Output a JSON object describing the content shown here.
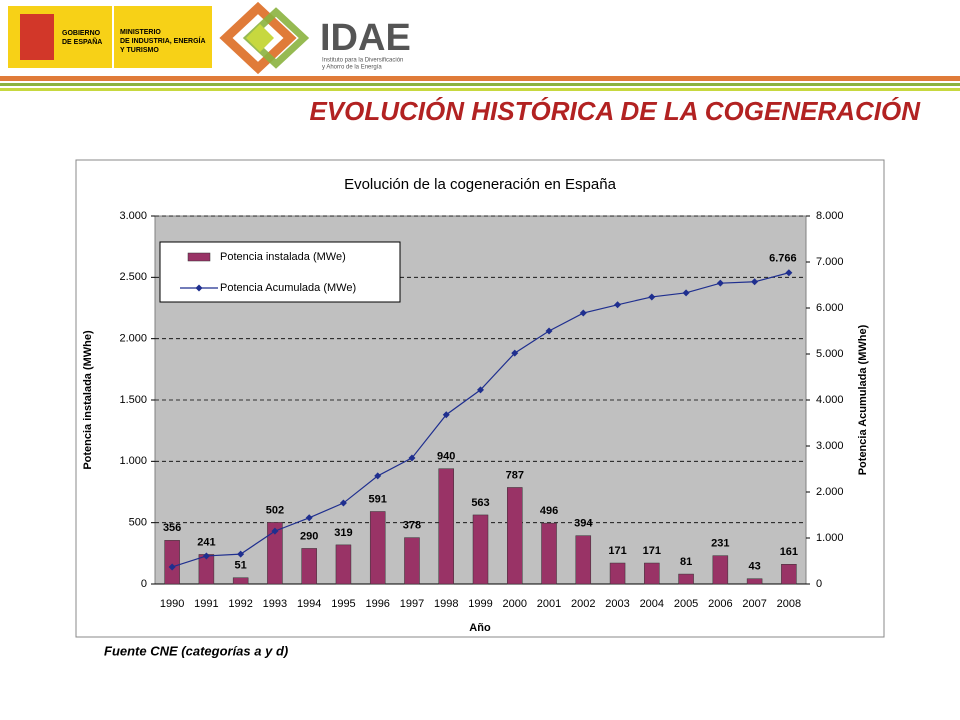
{
  "header": {
    "gobierno": [
      "GOBIERNO",
      "DE ESPAÑA"
    ],
    "ministerio": [
      "MINISTERIO",
      "DE INDUSTRIA, ENERGÍA",
      "Y TURISMO"
    ],
    "idae": "IDAE",
    "idae_sub": [
      "Instituto para la Diversificación",
      "y Ahorro de la Energía"
    ]
  },
  "title": "EVOLUCIÓN HISTÓRICA DE LA COGENERACIÓN",
  "source": "Fuente CNE (categorías a y d)",
  "chart_data": {
    "type": "bar",
    "title": "Evolución de la cogeneración en España",
    "x_label": "Año",
    "y_label": "Potencia instalada (MWhe)",
    "y2_label": "Potencia Acumulada (MWhe)",
    "categories": [
      "1990",
      "1991",
      "1992",
      "1993",
      "1994",
      "1995",
      "1996",
      "1997",
      "1998",
      "1999",
      "2000",
      "2001",
      "2002",
      "2003",
      "2004",
      "2005",
      "2006",
      "2007",
      "2008"
    ],
    "series": [
      {
        "name": "Potencia instalada (MWe)",
        "type": "bar",
        "color": "#993366",
        "values": [
          356,
          241,
          51,
          502,
          290,
          319,
          591,
          378,
          940,
          563,
          787,
          496,
          394,
          171,
          171,
          81,
          231,
          43,
          161
        ]
      },
      {
        "name": "Potencia Acumulada (MWe)",
        "type": "line",
        "axis": "y2",
        "color": "#1f2f8f",
        "values": [
          370,
          610,
          650,
          1150,
          1440,
          1760,
          2350,
          2740,
          3680,
          4220,
          5020,
          5500,
          5890,
          6070,
          6240,
          6330,
          6540,
          6570,
          6766
        ],
        "value_labels": [
          null,
          null,
          null,
          null,
          null,
          null,
          null,
          null,
          null,
          null,
          null,
          null,
          null,
          null,
          null,
          null,
          null,
          null,
          "6.766"
        ]
      }
    ],
    "ylim": [
      0,
      3000
    ],
    "yticks": [
      0,
      500,
      {
        "value": 1000,
        "label": "1.000"
      },
      {
        "value": 1500,
        "label": "1.500"
      },
      {
        "value": 2000,
        "label": "2.000"
      },
      {
        "value": 2500,
        "label": "2.500"
      },
      {
        "value": 3000,
        "label": "3.000"
      }
    ],
    "y2lim": [
      0,
      8000
    ],
    "y2ticks": [
      0,
      {
        "value": 1000,
        "label": "1.000"
      },
      {
        "value": 2000,
        "label": "2.000"
      },
      {
        "value": 3000,
        "label": "3.000"
      },
      {
        "value": 4000,
        "label": "4.000"
      },
      {
        "value": 5000,
        "label": "5.000"
      },
      {
        "value": 6000,
        "label": "6.000"
      },
      {
        "value": 7000,
        "label": "7.000"
      },
      {
        "value": 8000,
        "label": "8.000"
      }
    ],
    "grid": true,
    "legend": "upper left",
    "plot_background": "#c0c0c0"
  }
}
